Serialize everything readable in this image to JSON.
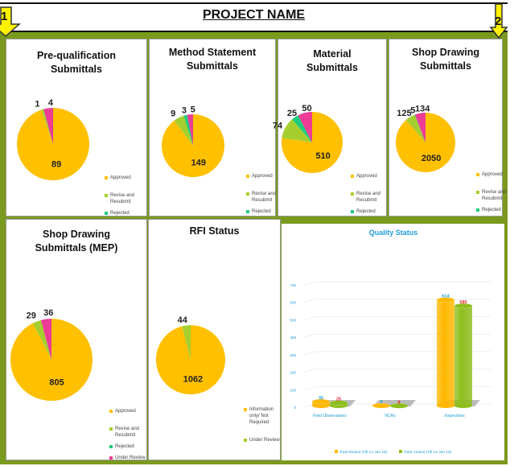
{
  "header": {
    "title": "PROJECT NAME",
    "marker_1": "1",
    "marker_2": "2"
  },
  "colors": {
    "approved": "#FFC000",
    "revise": "#A5CF2F",
    "rejected": "#1DCB7C",
    "under_review": "#EC3C96",
    "frame": "#7A9A1E",
    "quality_title": "#1F9BD7",
    "raised": "#FFB800",
    "closed": "#8DBE1C"
  },
  "chart_data": [
    {
      "type": "pie",
      "title": "Pre-qualification Submittals",
      "slices": [
        {
          "value": 89,
          "color": "#FFC000"
        },
        {
          "value": 1,
          "color": "#A5CF2F"
        },
        {
          "value": 0,
          "color": "#1DCB7C"
        },
        {
          "value": 4,
          "color": "#EC3C96"
        }
      ],
      "labels_shown": [
        "89",
        "1",
        "",
        "4"
      ],
      "legend": [
        {
          "label": "Approved",
          "color": "#FFC000"
        },
        {
          "label": "Revise and Resubmit",
          "color": "#A5CF2F"
        },
        {
          "label": "Rejected",
          "color": "#1DCB7C"
        }
      ]
    },
    {
      "type": "pie",
      "title": "Method Statement Submittals",
      "slices": [
        {
          "value": 149,
          "color": "#FFC000"
        },
        {
          "value": 9,
          "color": "#A5CF2F"
        },
        {
          "value": 3,
          "color": "#1DCB7C"
        },
        {
          "value": 5,
          "color": "#EC3C96"
        }
      ],
      "labels_shown": [
        "149",
        "9",
        "3",
        "5"
      ],
      "legend": [
        {
          "label": "Approved",
          "color": "#FFC000"
        },
        {
          "label": "Revise and Resubmit",
          "color": "#A5CF2F"
        },
        {
          "label": "Rejected",
          "color": "#1DCB7C"
        }
      ]
    },
    {
      "type": "pie",
      "title": "Material Submittals",
      "slices": [
        {
          "value": 510,
          "color": "#FFC000"
        },
        {
          "value": 74,
          "color": "#A5CF2F"
        },
        {
          "value": 25,
          "color": "#1DCB7C"
        },
        {
          "value": 50,
          "color": "#EC3C96"
        }
      ],
      "labels_shown": [
        "510",
        "74",
        "25",
        "50"
      ],
      "legend": [
        {
          "label": "Approved",
          "color": "#FFC000"
        },
        {
          "label": "Revise and Resubmit",
          "color": "#A5CF2F"
        },
        {
          "label": "Rejected",
          "color": "#1DCB7C"
        }
      ]
    },
    {
      "type": "pie",
      "title": "Shop Drawing Submittals",
      "slices": [
        {
          "value": 2050,
          "color": "#FFC000"
        },
        {
          "value": 125,
          "color": "#A5CF2F"
        },
        {
          "value": 5,
          "color": "#1DCB7C"
        },
        {
          "value": 134,
          "color": "#EC3C96"
        }
      ],
      "labels_shown": [
        "2050",
        "125",
        "5",
        "134"
      ],
      "legend": [
        {
          "label": "Approved",
          "color": "#FFC000"
        },
        {
          "label": "Revise and Resubmit",
          "color": "#A5CF2F"
        },
        {
          "label": "Rejected",
          "color": "#1DCB7C"
        }
      ]
    },
    {
      "type": "pie",
      "title": "Shop Drawing Submittals (MEP)",
      "slices": [
        {
          "value": 805,
          "color": "#FFC000"
        },
        {
          "value": 29,
          "color": "#A5CF2F"
        },
        {
          "value": 0,
          "color": "#1DCB7C"
        },
        {
          "value": 36,
          "color": "#EC3C96"
        }
      ],
      "labels_shown": [
        "805",
        "29",
        "",
        "36"
      ],
      "legend": [
        {
          "label": "Approved",
          "color": "#FFC000"
        },
        {
          "label": "Revise and Resubmit",
          "color": "#A5CF2F"
        },
        {
          "label": "Rejected",
          "color": "#1DCB7C"
        },
        {
          "label": "Under Review",
          "color": "#EC3C96"
        }
      ]
    },
    {
      "type": "pie",
      "title": "RFI Status",
      "slices": [
        {
          "value": 1062,
          "color": "#FFC000"
        },
        {
          "value": 44,
          "color": "#A5CF2F"
        }
      ],
      "labels_shown": [
        "1062",
        "44"
      ],
      "legend": [
        {
          "label": "Information only/ Not Required",
          "color": "#FFC000"
        },
        {
          "label": "Under Review",
          "color": "#A5CF2F"
        }
      ]
    },
    {
      "type": "bar",
      "title": "Quality Status",
      "categories": [
        "Field Observations",
        "NCRs",
        "Inspections"
      ],
      "series": [
        {
          "name": "Total Raised (Till 14 Jan 19)",
          "values": [
            32,
            9,
            614
          ],
          "color": "#FFB800",
          "label_color": "#1F9BD7"
        },
        {
          "name": "Total Closed (Till 14 Jan 19)",
          "values": [
            25,
            8,
            580
          ],
          "color": "#8DBE1C",
          "label_color": "#E0262E"
        }
      ],
      "ylim": [
        0,
        700
      ],
      "yticks": [
        0,
        100,
        200,
        300,
        400,
        500,
        600,
        700
      ],
      "grid": true,
      "legend_position": "bottom",
      "style": "3d-cylinder"
    }
  ]
}
